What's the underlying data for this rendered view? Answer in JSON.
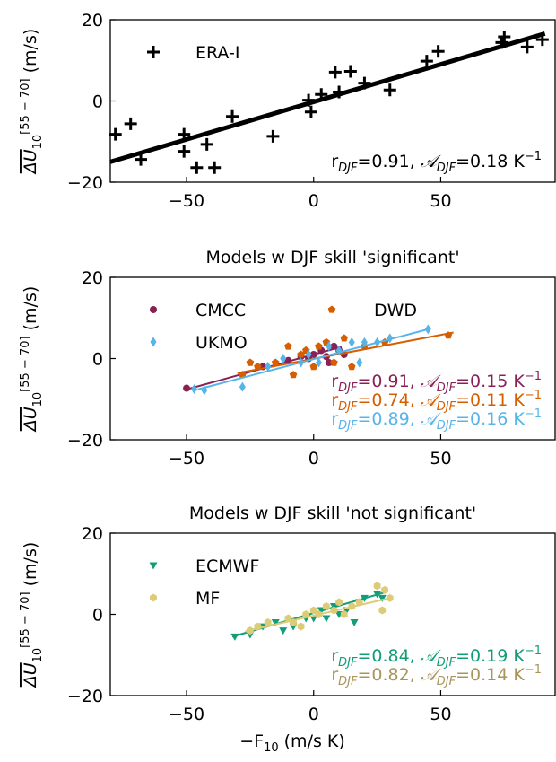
{
  "chart_data": [
    {
      "type": "scatter",
      "ylabel": {
        "main": "ΔU",
        "sub": "10",
        "sup": "[55 − 70]",
        "unit": " (m/s)"
      },
      "xlim": [
        -80,
        95
      ],
      "ylim": [
        -20,
        20
      ],
      "xticks": [
        {
          "value": -50,
          "label": "−50"
        },
        0,
        50
      ],
      "yticks": [
        {
          "value": -20,
          "label": "−20"
        },
        0,
        20
      ],
      "legend": "upper left",
      "legend_columns": 1,
      "series": [
        {
          "name": "ERA-I",
          "color": "#000000",
          "marker": "plus",
          "x": [
            -78,
            -72,
            -68,
            -51,
            -51,
            -46,
            -42,
            -39,
            -32,
            -16,
            -2,
            -1,
            3,
            8.5,
            10,
            14.5,
            20,
            30,
            44.5,
            49,
            74,
            75,
            84,
            90
          ],
          "y": [
            -8.2,
            -5.6,
            -14.4,
            -8.2,
            -12.4,
            -16.4,
            -10.7,
            -16.4,
            -3.8,
            -8.7,
            0.2,
            -2.7,
            1.6,
            7.1,
            2.2,
            7.3,
            4.4,
            2.7,
            9.8,
            12.2,
            14.4,
            15.8,
            13.3,
            15.1
          ],
          "fit": {
            "x": [
              -80,
              91
            ],
            "y": [
              -15,
              16.6
            ]
          },
          "annotation": [
            "r",
            "DJF",
            "=0.91, ",
            "𝒜",
            "DJF",
            "=0.18 K",
            "−1"
          ],
          "annotation_color": "#000000"
        }
      ]
    },
    {
      "type": "scatter",
      "title": "Models w DJF skill 'significant'",
      "ylabel": {
        "main": "ΔU",
        "sub": "10",
        "sup": "[55 − 70]",
        "unit": " (m/s)"
      },
      "xlim": [
        -80,
        95
      ],
      "ylim": [
        -20,
        20
      ],
      "xticks": [
        {
          "value": -50,
          "label": "−50"
        },
        0,
        50
      ],
      "yticks": [
        {
          "value": -20,
          "label": "−20"
        },
        0,
        20
      ],
      "legend": "upper left",
      "legend_columns": 2,
      "series": [
        {
          "name": "CMCC",
          "color": "#882255",
          "marker": "circle",
          "x": [
            -50,
            -20,
            -10,
            -5,
            0,
            3,
            5,
            8,
            10,
            12,
            -2,
            6
          ],
          "y": [
            -7.3,
            -2,
            -0.5,
            0.5,
            1,
            2,
            0.5,
            3,
            2,
            1,
            0,
            -1
          ],
          "fit": {
            "x": [
              -50,
              11
            ],
            "y": [
              -7.6,
              2.9
            ]
          },
          "annotation": [
            "r",
            "DJF",
            "=0.91, ",
            "𝒜",
            "DJF",
            "=0.15 K",
            "−1"
          ],
          "annotation_color": "#882255"
        },
        {
          "name": "DWD",
          "color": "#d55e00",
          "marker": "pentagon",
          "x": [
            53,
            -28,
            -22,
            -15,
            -10,
            -8,
            -5,
            -3,
            0,
            2,
            5,
            8,
            12,
            20,
            28,
            -25,
            15
          ],
          "y": [
            5.7,
            -4,
            -2,
            -1,
            3,
            -4,
            1,
            2,
            -2,
            3,
            4,
            -1,
            5,
            3,
            4,
            -1,
            -2
          ],
          "fit": {
            "x": [
              -30,
              55
            ],
            "y": [
              -3.6,
              6.4
            ]
          },
          "annotation": [
            "r",
            "DJF",
            "=0.74, ",
            "𝒜",
            "DJF",
            "=0.11 K",
            "−1"
          ],
          "annotation_color": "#d55e00"
        },
        {
          "name": "UKMO",
          "color": "#56b4e9",
          "marker": "diamond",
          "x": [
            -47,
            -43,
            -28,
            -18,
            -12,
            -5,
            -2,
            2,
            6,
            10,
            15,
            20,
            25,
            30,
            45,
            18
          ],
          "y": [
            -7.5,
            -7.8,
            -7,
            -2,
            0,
            -1,
            1,
            -1,
            3,
            2,
            4,
            4,
            4,
            5,
            7.2,
            -1
          ],
          "fit": {
            "x": [
              -45.6,
              45.6
            ],
            "y": [
              -7.6,
              7.3
            ]
          },
          "annotation": [
            "r",
            "DJF",
            "=0.89, ",
            "𝒜",
            "DJF",
            "=0.16 K",
            "−1"
          ],
          "annotation_color": "#56b4e9"
        }
      ]
    },
    {
      "type": "scatter",
      "title": "Models w DJF skill 'not significant'",
      "ylabel": {
        "main": "ΔU",
        "sub": "10",
        "sup": "[55 − 70]",
        "unit": " (m/s)"
      },
      "xlabel": {
        "main": "−F",
        "sub": "10",
        "unit": " (m/s K)"
      },
      "xlim": [
        -80,
        95
      ],
      "ylim": [
        -20,
        20
      ],
      "xticks": [
        {
          "value": -50,
          "label": "−50"
        },
        0,
        50
      ],
      "yticks": [
        {
          "value": -20,
          "label": "−20"
        },
        0,
        20
      ],
      "legend": "upper left",
      "legend_columns": 1,
      "series": [
        {
          "name": "ECMWF",
          "color": "#119e77",
          "marker": "triangle-down",
          "x": [
            -31,
            -25,
            -20,
            -15,
            -12,
            -8,
            -3,
            0,
            3,
            5,
            8,
            10,
            13,
            16,
            20,
            25,
            27,
            18
          ],
          "y": [
            -5.5,
            -5,
            -3,
            -2,
            -4,
            -3,
            -1,
            -1,
            1,
            -1,
            2,
            0,
            1,
            -2,
            4,
            5,
            4,
            3
          ],
          "fit": {
            "x": [
              -32,
              29
            ],
            "y": [
              -5.5,
              5.6
            ]
          },
          "annotation": [
            "r",
            "DJF",
            "=0.84, ",
            "𝒜",
            "DJF",
            "=0.19 K",
            "−1"
          ],
          "annotation_color": "#119e77"
        },
        {
          "name": "MF",
          "color": "#ddcc77",
          "marker": "hexagon",
          "x": [
            -25,
            -22,
            -18,
            -10,
            -5,
            -3,
            0,
            2,
            5,
            8,
            10,
            12,
            15,
            18,
            25,
            28,
            30,
            27,
            -8
          ],
          "y": [
            -4,
            -3,
            -2,
            -1,
            -3,
            0,
            1,
            0,
            2,
            1,
            3,
            0,
            2,
            3,
            7,
            6,
            4,
            1,
            -2
          ],
          "fit": {
            "x": [
              -27,
              30
            ],
            "y": [
              -4.2,
              4
            ]
          },
          "annotation": [
            "r",
            "DJF",
            "=0.82, ",
            "𝒜",
            "DJF",
            "=0.14 K",
            "−1"
          ],
          "annotation_color": "#a8955a"
        }
      ]
    }
  ]
}
